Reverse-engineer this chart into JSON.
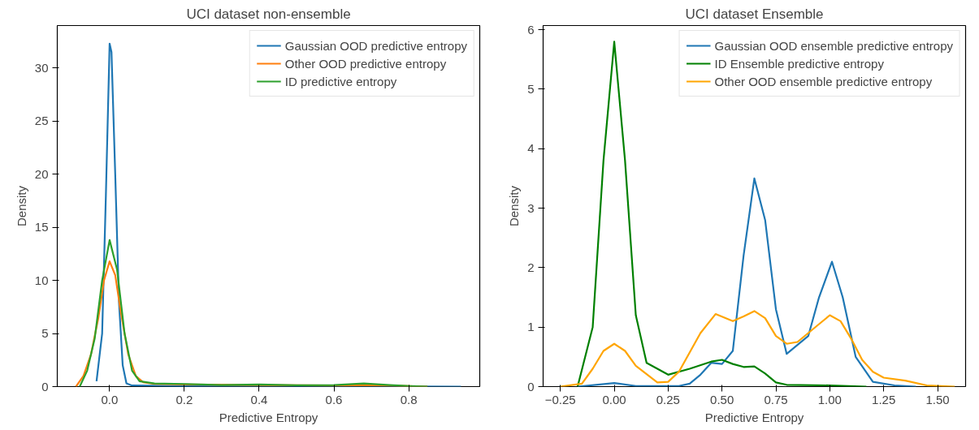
{
  "chart_data": [
    {
      "type": "line",
      "title": "UCI dataset non-ensemble",
      "xlabel": "Predictive Entropy",
      "ylabel": "Density",
      "xlim": [
        -0.14,
        0.99
      ],
      "ylim": [
        0,
        34
      ],
      "xticks": [
        {
          "value": 0,
          "label": "0.0"
        },
        0.2,
        0.4,
        0.6,
        0.8
      ],
      "yticks": [
        0,
        5,
        10,
        15,
        20,
        25,
        30
      ],
      "grid": false,
      "legend": "top right",
      "series": [
        {
          "name": "Gaussian OOD predictive entropy",
          "color": "#1f77b4",
          "x": [
            -0.035,
            -0.02,
            -0.01,
            0,
            0.005,
            0.015,
            0.025,
            0.035,
            0.045,
            0.06,
            0.2,
            0.5,
            0.94
          ],
          "values": [
            0.5,
            5,
            18,
            32.3,
            31.5,
            20,
            8,
            2,
            0.3,
            0.1,
            0.05,
            0.02,
            0
          ]
        },
        {
          "name": "Other OOD predictive entropy",
          "color": "#ff7f0e",
          "x": [
            -0.09,
            -0.07,
            -0.05,
            -0.03,
            -0.015,
            0,
            0.015,
            0.03,
            0.05,
            0.07,
            0.09,
            0.12,
            0.2,
            0.4,
            0.6,
            0.7,
            0.8,
            0.85
          ],
          "values": [
            0,
            1,
            3,
            6.5,
            10,
            11.8,
            10.5,
            7,
            3,
            1,
            0.4,
            0.25,
            0.2,
            0.15,
            0.1,
            0.15,
            0.05,
            0
          ]
        },
        {
          "name": "ID predictive entropy",
          "color": "#2ca02c",
          "x": [
            -0.08,
            -0.06,
            -0.04,
            -0.02,
            0,
            0.02,
            0.04,
            0.06,
            0.08,
            0.12,
            0.2,
            0.3,
            0.4,
            0.5,
            0.6,
            0.68,
            0.75,
            0.82,
            0.85
          ],
          "values": [
            0,
            1.5,
            4.5,
            10,
            13.8,
            11,
            5,
            1.5,
            0.5,
            0.3,
            0.25,
            0.15,
            0.2,
            0.12,
            0.15,
            0.3,
            0.15,
            0.03,
            0
          ]
        }
      ]
    },
    {
      "type": "line",
      "title": "UCI dataset Ensemble",
      "xlabel": "Predictive Entropy",
      "ylabel": "Density",
      "xlim": [
        -0.33,
        1.63
      ],
      "ylim": [
        0,
        6.07
      ],
      "xticks": [
        {
          "value": -0.25,
          "label": "−0.25"
        },
        {
          "value": 0,
          "label": "0.00"
        },
        {
          "value": 0.25,
          "label": "0.25"
        },
        {
          "value": 0.5,
          "label": "0.50"
        },
        {
          "value": 0.75,
          "label": "0.75"
        },
        {
          "value": 1,
          "label": "1.00"
        },
        {
          "value": 1.25,
          "label": "1.25"
        },
        {
          "value": 1.5,
          "label": "1.50"
        }
      ],
      "yticks": [
        0,
        1,
        2,
        3,
        4,
        5,
        6
      ],
      "grid": false,
      "legend": "top right",
      "series": [
        {
          "name": "Gaussian OOD ensemble predictive entropy",
          "color": "#1f77b4",
          "x": [
            -0.17,
            0,
            0.1,
            0.3,
            0.35,
            0.4,
            0.45,
            0.5,
            0.55,
            0.6,
            0.65,
            0.7,
            0.75,
            0.8,
            0.85,
            0.9,
            0.95,
            1.01,
            1.06,
            1.12,
            1.2,
            1.3,
            1.4
          ],
          "values": [
            0,
            0.06,
            0.01,
            0.01,
            0.05,
            0.2,
            0.4,
            0.38,
            0.6,
            2.2,
            3.5,
            2.8,
            1.3,
            0.55,
            0.7,
            0.85,
            1.5,
            2.1,
            1.5,
            0.5,
            0.08,
            0.02,
            0
          ]
        },
        {
          "name": "ID Ensemble predictive entropy",
          "color": "#008000",
          "x": [
            -0.17,
            -0.1,
            -0.05,
            0,
            0.05,
            0.1,
            0.15,
            0.25,
            0.35,
            0.45,
            0.5,
            0.55,
            0.6,
            0.65,
            0.7,
            0.75,
            0.8,
            1.0,
            1.17
          ],
          "values": [
            0,
            1,
            3.8,
            5.8,
            3.8,
            1.2,
            0.4,
            0.2,
            0.3,
            0.42,
            0.45,
            0.38,
            0.33,
            0.34,
            0.22,
            0.07,
            0.03,
            0.02,
            0
          ]
        },
        {
          "name": "Other OOD ensemble predictive entropy",
          "color": "#ffa500",
          "x": [
            -0.25,
            -0.15,
            -0.1,
            -0.05,
            0,
            0.05,
            0.1,
            0.2,
            0.25,
            0.3,
            0.4,
            0.47,
            0.55,
            0.6,
            0.65,
            0.7,
            0.75,
            0.8,
            0.85,
            0.9,
            0.95,
            1.0,
            1.05,
            1.1,
            1.15,
            1.2,
            1.25,
            1.35,
            1.45,
            1.58
          ],
          "values": [
            0,
            0.05,
            0.3,
            0.6,
            0.72,
            0.6,
            0.35,
            0.07,
            0.08,
            0.25,
            0.9,
            1.22,
            1.1,
            1.18,
            1.27,
            1.15,
            0.85,
            0.72,
            0.75,
            0.9,
            1.05,
            1.2,
            1.1,
            0.8,
            0.45,
            0.25,
            0.15,
            0.1,
            0.02,
            0
          ]
        }
      ]
    }
  ]
}
